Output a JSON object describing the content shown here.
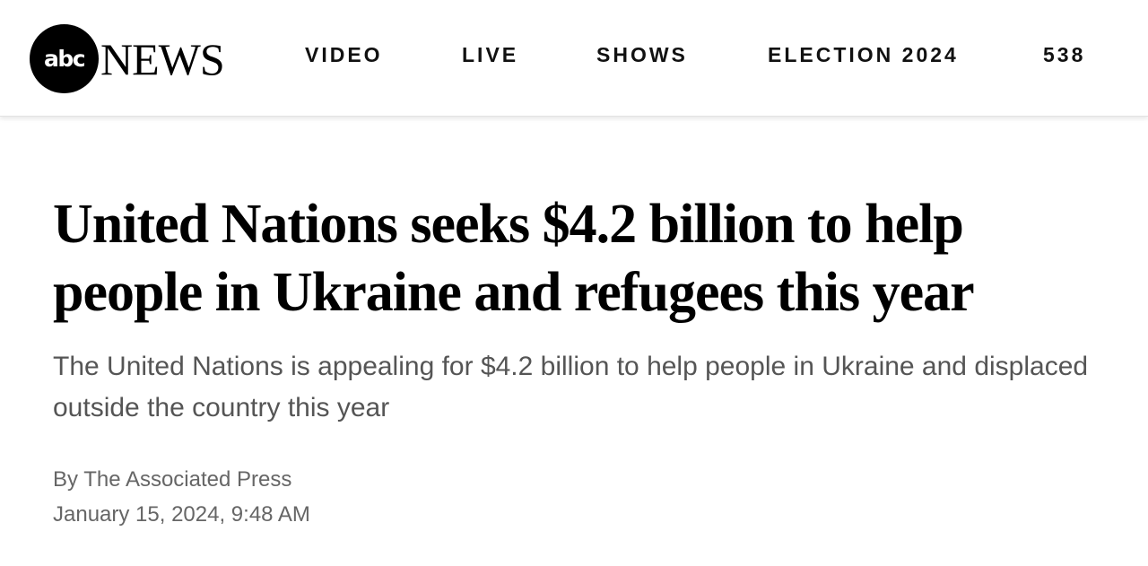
{
  "header": {
    "logo": {
      "circle_text": "abc",
      "wordmark": "NEWS"
    },
    "nav": [
      {
        "label": "VIDEO"
      },
      {
        "label": "LIVE"
      },
      {
        "label": "SHOWS"
      },
      {
        "label": "ELECTION 2024"
      },
      {
        "label": "538"
      }
    ]
  },
  "article": {
    "headline": "United Nations seeks $4.2 billion to help people in Ukraine and refugees this year",
    "subheadline": "The United Nations is appealing for $4.2 billion to help people in Ukraine and displaced outside the country this year",
    "byline": "By The Associated Press",
    "date": "January 15, 2024, 9:48 AM"
  }
}
